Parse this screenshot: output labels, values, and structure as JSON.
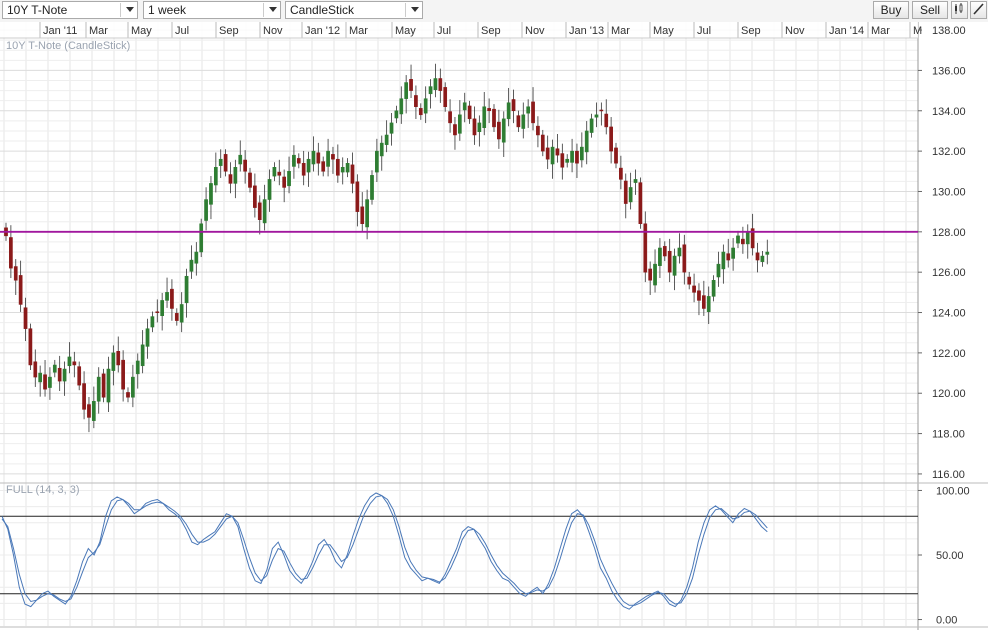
{
  "toolbar": {
    "instrument": "10Y T-Note",
    "interval": "1 week",
    "chart_type": "CandleStick",
    "buy_label": "Buy",
    "sell_label": "Sell",
    "candle_icon": "candlestick-icon",
    "draw_icon": "pencil-icon"
  },
  "colors": {
    "bull": "#2e7d32",
    "bear": "#8b1a1a",
    "resistance": "#a0179e",
    "oscillator": "#4a78b8",
    "grid": "#e6e6e6"
  },
  "chart_data": [
    {
      "type": "candlestick",
      "title": "10Y T-Note (CandleStick)",
      "x_tick_labels": [
        "Jan '11",
        "Mar",
        "May",
        "Jul",
        "Sep",
        "Nov",
        "Jan '12",
        "Mar",
        "May",
        "Jul",
        "Sep",
        "Nov",
        "Jan '13",
        "Mar",
        "May",
        "Jul",
        "Sep",
        "Nov",
        "Jan '14",
        "Mar",
        "M"
      ],
      "y_tick_labels": [
        "138.00",
        "136.00",
        "134.00",
        "132.00",
        "130.00",
        "128.00",
        "126.00",
        "124.00",
        "122.00",
        "120.00",
        "118.00",
        "116.00"
      ],
      "ylim": [
        115.6,
        138.4
      ],
      "grid": true,
      "horizontal_line": 128.0,
      "close_series": [
        127.8,
        126.2,
        125.6,
        124.4,
        123.2,
        121.4,
        120.8,
        121.0,
        120.2,
        120.8,
        121.4,
        120.6,
        121.2,
        121.8,
        121.4,
        120.4,
        119.2,
        118.8,
        119.6,
        120.8,
        119.8,
        121.2,
        122.0,
        121.4,
        120.2,
        119.8,
        120.8,
        121.6,
        122.4,
        123.2,
        123.8,
        124.0,
        124.6,
        125.0,
        124.2,
        123.6,
        124.4,
        125.8,
        126.6,
        127.0,
        128.4,
        129.6,
        130.4,
        131.2,
        131.6,
        131.0,
        130.4,
        131.2,
        131.8,
        131.0,
        130.2,
        129.2,
        128.6,
        129.6,
        130.6,
        131.2,
        130.8,
        130.2,
        131.0,
        131.8,
        131.4,
        130.8,
        131.6,
        132.0,
        131.4,
        131.0,
        132.0,
        131.6,
        130.8,
        131.2,
        131.4,
        130.4,
        129.0,
        128.4,
        129.6,
        130.8,
        132.0,
        132.4,
        132.8,
        133.4,
        134.0,
        134.6,
        135.4,
        135.0,
        134.2,
        133.8,
        134.6,
        135.2,
        135.6,
        135.0,
        134.2,
        133.4,
        132.8,
        133.8,
        134.4,
        133.6,
        132.8,
        133.4,
        134.2,
        134.0,
        133.2,
        132.6,
        133.6,
        134.4,
        134.0,
        133.2,
        133.8,
        134.2,
        133.4,
        132.8,
        132.0,
        131.6,
        132.2,
        131.8,
        131.2,
        131.6,
        132.0,
        131.4,
        132.2,
        133.0,
        133.6,
        133.8,
        134.0,
        133.2,
        132.0,
        131.4,
        130.6,
        129.4,
        130.2,
        130.6,
        128.4,
        126.0,
        125.6,
        126.4,
        127.2,
        126.8,
        126.0,
        126.8,
        127.2,
        126.0,
        125.4,
        125.0,
        124.6,
        124.2,
        124.8,
        125.6,
        126.4,
        127.0,
        126.6,
        127.2,
        127.8,
        127.4,
        128.0,
        127.2,
        126.6,
        126.8,
        127.0
      ],
      "osc_title": "FULL (14, 3, 3)",
      "osc_tick_labels": [
        "100.00",
        "50.00",
        "0.00"
      ],
      "osc_levels": [
        80,
        20
      ],
      "osc_ylim": [
        -5,
        105
      ],
      "osc_k": [
        80,
        70,
        50,
        25,
        12,
        10,
        15,
        20,
        22,
        18,
        15,
        12,
        18,
        30,
        45,
        55,
        50,
        60,
        80,
        92,
        95,
        93,
        88,
        82,
        85,
        90,
        92,
        93,
        90,
        85,
        82,
        78,
        70,
        60,
        58,
        62,
        65,
        68,
        75,
        82,
        80,
        72,
        55,
        40,
        30,
        28,
        38,
        55,
        60,
        50,
        38,
        32,
        28,
        35,
        45,
        58,
        62,
        55,
        45,
        40,
        50,
        65,
        78,
        88,
        95,
        98,
        96,
        90,
        80,
        65,
        48,
        40,
        35,
        30,
        32,
        30,
        28,
        35,
        45,
        55,
        68,
        72,
        70,
        62,
        55,
        45,
        38,
        32,
        30,
        25,
        20,
        18,
        22,
        25,
        20,
        28,
        40,
        55,
        70,
        82,
        85,
        80,
        68,
        55,
        40,
        32,
        22,
        15,
        10,
        8,
        12,
        15,
        18,
        20,
        22,
        18,
        12,
        10,
        15,
        25,
        40,
        60,
        75,
        85,
        88,
        85,
        80,
        75,
        82,
        86,
        84,
        78,
        72,
        68
      ],
      "osc_d": [
        78,
        72,
        55,
        35,
        20,
        14,
        15,
        18,
        20,
        19,
        16,
        14,
        16,
        25,
        37,
        48,
        52,
        58,
        72,
        85,
        92,
        93,
        90,
        85,
        85,
        88,
        90,
        91,
        90,
        87,
        84,
        80,
        74,
        66,
        60,
        60,
        62,
        66,
        72,
        78,
        80,
        75,
        62,
        48,
        36,
        30,
        34,
        46,
        55,
        53,
        44,
        36,
        31,
        32,
        40,
        50,
        58,
        58,
        52,
        45,
        48,
        58,
        70,
        82,
        90,
        95,
        96,
        93,
        85,
        72,
        56,
        45,
        38,
        33,
        32,
        31,
        29,
        32,
        40,
        50,
        62,
        69,
        70,
        66,
        59,
        50,
        42,
        36,
        32,
        28,
        23,
        20,
        21,
        23,
        22,
        25,
        34,
        47,
        62,
        75,
        82,
        81,
        73,
        61,
        47,
        37,
        28,
        20,
        14,
        11,
        11,
        13,
        16,
        19,
        21,
        20,
        15,
        12,
        13,
        20,
        32,
        50,
        66,
        79,
        85,
        86,
        82,
        78,
        79,
        83,
        84,
        81,
        76,
        71
      ]
    }
  ]
}
